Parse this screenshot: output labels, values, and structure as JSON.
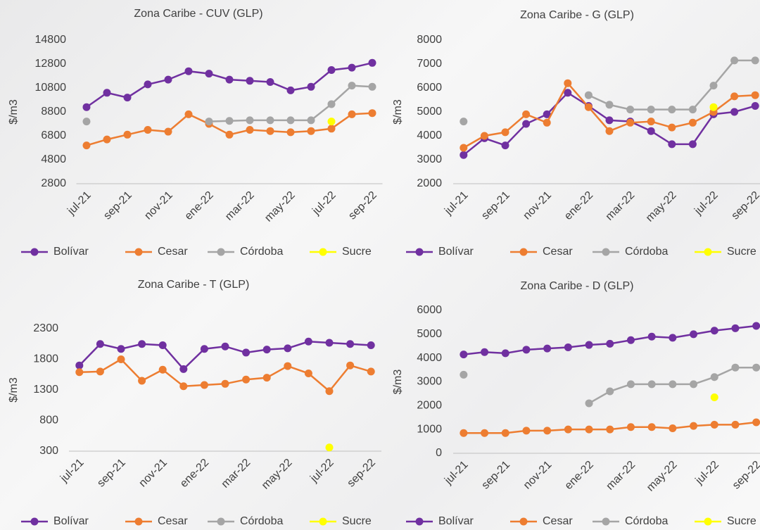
{
  "chart_data": [
    {
      "type": "line",
      "title": "Zona Caribe - CUV (GLP)",
      "ylabel": "$/m3",
      "categories": [
        "jul-21",
        null,
        "sep-21",
        null,
        "nov-21",
        null,
        "ene-22",
        null,
        "mar-22",
        null,
        "may-22",
        null,
        "jul-22",
        null,
        "sep-22"
      ],
      "ylim": [
        2800,
        14800
      ],
      "yticks": [
        2800,
        4800,
        6800,
        8800,
        10800,
        12800,
        14800
      ],
      "series": [
        {
          "name": "Bolívar",
          "color": "#7030a0",
          "values": [
            9200,
            10400,
            10000,
            11100,
            11500,
            12200,
            12000,
            11500,
            11400,
            11300,
            10600,
            10900,
            12300,
            12500,
            12900
          ]
        },
        {
          "name": "Cesar",
          "color": "#ed7d31",
          "values": [
            6000,
            6500,
            6900,
            7300,
            7150,
            8600,
            7800,
            6900,
            7300,
            7200,
            7100,
            7200,
            7400,
            8600,
            8700
          ]
        },
        {
          "name": "Córdoba",
          "color": "#a5a5a5",
          "values": [
            8000,
            null,
            null,
            null,
            null,
            null,
            8000,
            8050,
            8100,
            8100,
            8100,
            8100,
            9450,
            11000,
            10900
          ]
        },
        {
          "name": "Sucre",
          "color": "#ffff00",
          "values": [
            null,
            null,
            null,
            null,
            null,
            null,
            null,
            null,
            null,
            null,
            null,
            null,
            8000,
            null,
            null
          ]
        }
      ]
    },
    {
      "type": "line",
      "title": "Zona Caribe - G (GLP)",
      "ylabel": "$/m3",
      "categories": [
        "jul-21",
        null,
        "sep-21",
        null,
        "nov-21",
        null,
        "ene-22",
        null,
        "mar-22",
        null,
        "may-22",
        null,
        "jul-22",
        null,
        "sep-22"
      ],
      "ylim": [
        2000,
        8000
      ],
      "yticks": [
        2000,
        3000,
        4000,
        5000,
        6000,
        7000,
        8000
      ],
      "series": [
        {
          "name": "Bolívar",
          "color": "#7030a0",
          "values": [
            3200,
            3900,
            3600,
            4500,
            4900,
            5800,
            5250,
            4650,
            4600,
            4200,
            3650,
            3650,
            4900,
            5000,
            5250
          ]
        },
        {
          "name": "Cesar",
          "color": "#ed7d31",
          "values": [
            3500,
            4000,
            4150,
            4900,
            4550,
            6200,
            5200,
            4200,
            4550,
            4600,
            4350,
            4550,
            5000,
            5650,
            5700
          ]
        },
        {
          "name": "Córdoba",
          "color": "#a5a5a5",
          "values": [
            4600,
            null,
            null,
            null,
            null,
            null,
            5700,
            5300,
            5100,
            5100,
            5100,
            5100,
            6100,
            7150,
            7150
          ]
        },
        {
          "name": "Sucre",
          "color": "#ffff00",
          "values": [
            null,
            null,
            null,
            null,
            null,
            null,
            null,
            null,
            null,
            null,
            null,
            null,
            5200,
            null,
            null
          ]
        }
      ]
    },
    {
      "type": "line",
      "title": "Zona Caribe - T (GLP)",
      "ylabel": "$/m3",
      "categories": [
        "jul-21",
        null,
        "sep-21",
        null,
        "nov-21",
        null,
        "ene-22",
        null,
        "mar-22",
        null,
        "may-22",
        null,
        "jul-22",
        null,
        "sep-22"
      ],
      "ylim": [
        300,
        2300
      ],
      "yticks": [
        300,
        800,
        1300,
        1800,
        2300
      ],
      "series": [
        {
          "name": "Bolívar",
          "color": "#7030a0",
          "values": [
            1700,
            2050,
            1970,
            2050,
            2030,
            1640,
            1970,
            2010,
            1910,
            1960,
            1980,
            2090,
            2070,
            2050,
            2030
          ]
        },
        {
          "name": "Cesar",
          "color": "#ed7d31",
          "values": [
            1590,
            1600,
            1800,
            1450,
            1630,
            1360,
            1380,
            1400,
            1470,
            1500,
            1690,
            1570,
            1280,
            1700,
            1600
          ]
        },
        {
          "name": "Córdoba",
          "color": "#a5a5a5",
          "values": [
            null,
            null,
            null,
            null,
            null,
            null,
            null,
            null,
            null,
            null,
            null,
            null,
            null,
            null,
            null
          ]
        },
        {
          "name": "Sucre",
          "color": "#ffff00",
          "values": [
            null,
            null,
            null,
            null,
            null,
            null,
            null,
            null,
            null,
            null,
            null,
            null,
            360,
            null,
            null
          ]
        }
      ]
    },
    {
      "type": "line",
      "title": "Zona Caribe - D (GLP)",
      "ylabel": "$/m3",
      "categories": [
        "jul-21",
        null,
        "sep-21",
        null,
        "nov-21",
        null,
        "ene-22",
        null,
        "mar-22",
        null,
        "may-22",
        null,
        "jul-22",
        null,
        "sep-22"
      ],
      "ylim": [
        0,
        6000
      ],
      "yticks": [
        0,
        1000,
        2000,
        3000,
        4000,
        5000,
        6000
      ],
      "series": [
        {
          "name": "Bolívar",
          "color": "#7030a0",
          "values": [
            4150,
            4250,
            4200,
            4350,
            4400,
            4450,
            4550,
            4600,
            4750,
            4900,
            4850,
            5000,
            5150,
            5250,
            5350
          ]
        },
        {
          "name": "Cesar",
          "color": "#ed7d31",
          "values": [
            850,
            850,
            850,
            950,
            950,
            1000,
            1000,
            1000,
            1100,
            1100,
            1050,
            1150,
            1200,
            1200,
            1300
          ]
        },
        {
          "name": "Córdoba",
          "color": "#a5a5a5",
          "values": [
            3300,
            null,
            null,
            null,
            null,
            null,
            2100,
            2600,
            2900,
            2900,
            2900,
            2900,
            3200,
            3600,
            3600
          ]
        },
        {
          "name": "Sucre",
          "color": "#ffff00",
          "values": [
            null,
            null,
            null,
            null,
            null,
            null,
            null,
            null,
            null,
            null,
            null,
            null,
            2350,
            null,
            null
          ]
        }
      ]
    }
  ]
}
